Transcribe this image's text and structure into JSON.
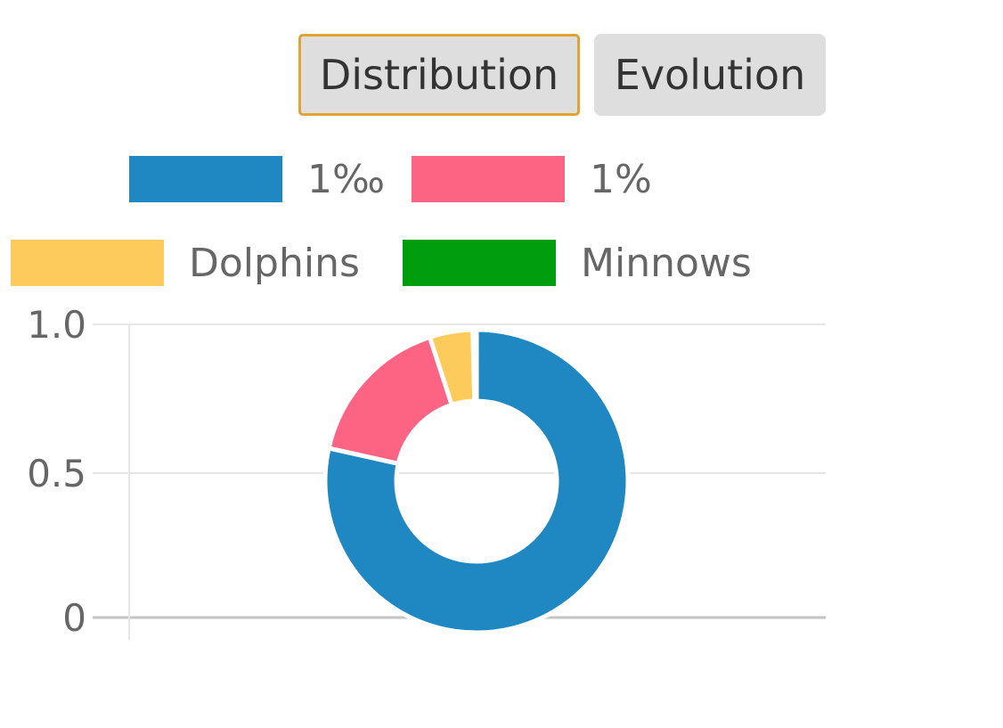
{
  "tabs": [
    {
      "label": "Distribution",
      "active": true
    },
    {
      "label": "Evolution",
      "active": false
    }
  ],
  "chart_data": {
    "type": "pie",
    "variant": "doughnut",
    "categories": [
      "1‰",
      "1%",
      "Dolphins",
      "Minnows"
    ],
    "values": [
      78.5,
      16.5,
      4.6,
      0.4
    ],
    "colors": [
      "#1f88c2",
      "#fd6483",
      "#fccb5c",
      "#009e0f"
    ],
    "legend": {
      "position": "top"
    },
    "y_ticks": [
      "0",
      "0.5",
      "1.0"
    ],
    "ylim": [
      0,
      1
    ],
    "grid": true
  }
}
